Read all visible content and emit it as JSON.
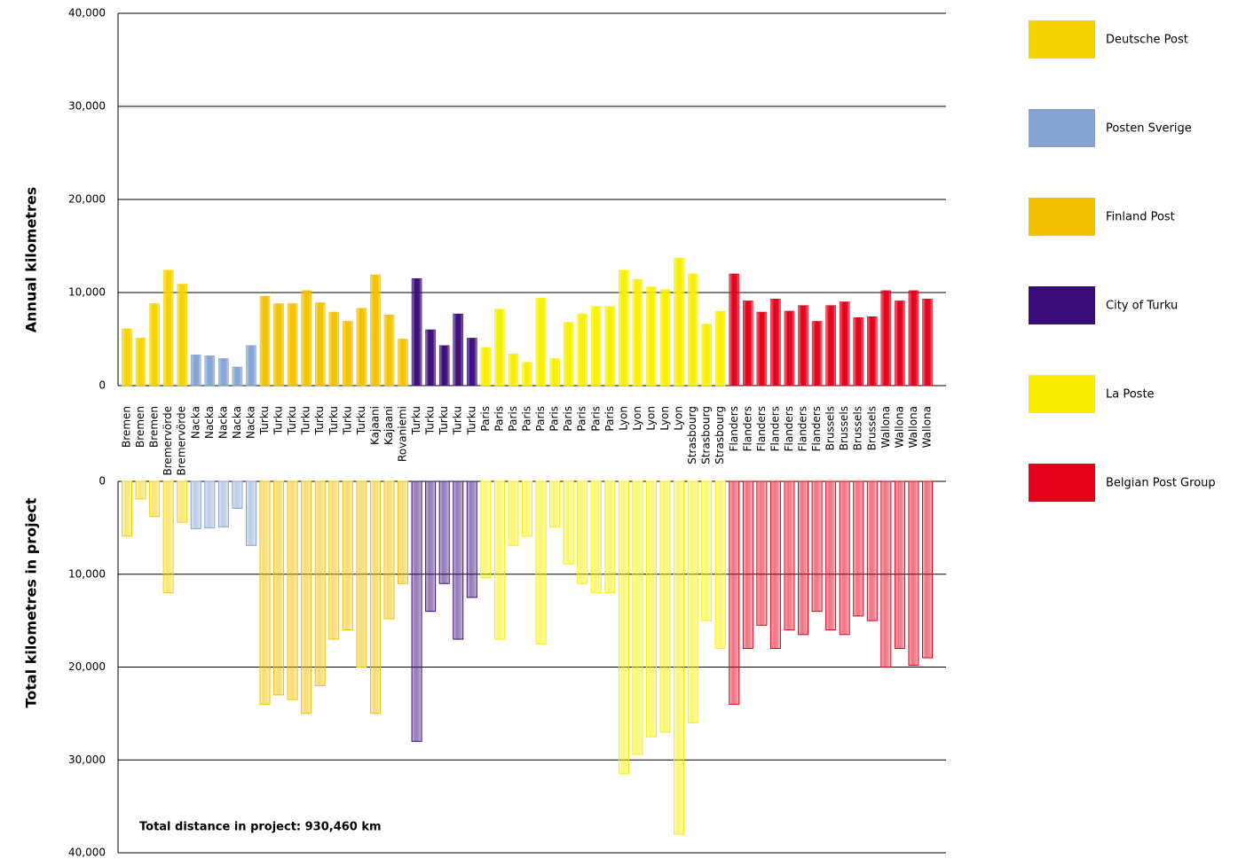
{
  "chart_data": {
    "type": "bar",
    "y_label": "Annual kilometres",
    "y2_label": "Total kilometres in project",
    "annotation": "Total distance in project: 930,460 km",
    "ylim": [
      0,
      40000
    ],
    "yticks": [
      0,
      {
        "value": 10000,
        "label": "10,000"
      },
      {
        "value": 20000,
        "label": "20,000"
      },
      {
        "value": 30000,
        "label": "30,000"
      },
      {
        "value": 40000,
        "label": "40,000"
      }
    ],
    "y2lim": [
      0,
      40000
    ],
    "y2ticks": [
      0,
      {
        "value": 10000,
        "label": "10,000"
      },
      {
        "value": 20000,
        "label": "20,000"
      },
      {
        "value": 30000,
        "label": "30,000"
      },
      {
        "value": 40000,
        "label": "40,000"
      }
    ],
    "y2_inverted": true,
    "grid": true,
    "series": [
      {
        "name": "Deutsche Post",
        "color": "#f5d300",
        "categories": [
          "Bremen",
          "Bremen",
          "Bremen",
          "Bremervörde",
          "Bremervörde"
        ],
        "values": [
          6100,
          5100,
          8800,
          12400,
          10900
        ],
        "totals": [
          5900,
          1900,
          3800,
          12000,
          4400
        ]
      },
      {
        "name": "Posten Sverige",
        "color": "#85a3d4",
        "categories": [
          "Nacka",
          "Nacka",
          "Nacka",
          "Nacka",
          "Nacka"
        ],
        "values": [
          3300,
          3200,
          2900,
          2000,
          4300
        ],
        "totals": [
          5100,
          5000,
          4900,
          2900,
          6900
        ]
      },
      {
        "name": "Finland Post",
        "color": "#f2c100",
        "categories": [
          "Turku",
          "Turku",
          "Turku",
          "Turku",
          "Turku",
          "Turku",
          "Turku",
          "Turku",
          "Kajaani",
          "Kajaani",
          "Rovaniemi"
        ],
        "values": [
          9600,
          8800,
          8800,
          10200,
          8900,
          7900,
          6900,
          8300,
          11900,
          7600,
          5000
        ],
        "totals": [
          24000,
          23000,
          23500,
          25000,
          22000,
          17000,
          16000,
          20000,
          25000,
          14800,
          11000
        ]
      },
      {
        "name": "City of Turku",
        "color": "#3a0c7a",
        "categories": [
          "Turku",
          "Turku",
          "Turku",
          "Turku",
          "Turku"
        ],
        "values": [
          11500,
          6000,
          4300,
          7700,
          5100
        ],
        "totals": [
          28000,
          14000,
          11000,
          17000,
          12500
        ]
      },
      {
        "name": "La Poste",
        "color": "#f8f000",
        "categories": [
          "Paris",
          "Paris",
          "Paris",
          "Paris",
          "Paris",
          "Paris",
          "Paris",
          "Paris",
          "Paris",
          "Paris",
          "Lyon",
          "Lyon",
          "Lyon",
          "Lyon",
          "Lyon",
          "Strasbourg",
          "Strasbourg",
          "Strasbourg"
        ],
        "values": [
          4100,
          8200,
          3400,
          2500,
          9400,
          2900,
          6800,
          7700,
          8500,
          8500,
          12400,
          11400,
          10600,
          10300,
          13700,
          12000,
          6600,
          8000
        ],
        "totals": [
          10400,
          17000,
          6900,
          5900,
          17500,
          4900,
          8900,
          11000,
          12000,
          12000,
          31500,
          29400,
          27500,
          27000,
          38000,
          26000,
          15000,
          18000
        ]
      },
      {
        "name": "Belgian Post Group",
        "color": "#e2001a",
        "categories": [
          "Flanders",
          "Flanders",
          "Flanders",
          "Flanders",
          "Flanders",
          "Flanders",
          "Flanders",
          "Brussels",
          "Brussels",
          "Brussels",
          "Brussels",
          "Wallona",
          "Wallona",
          "Wallona",
          "Wallona"
        ],
        "values": [
          12000,
          9100,
          7900,
          9300,
          8000,
          8600,
          6900,
          8600,
          9000,
          7300,
          7400,
          10200,
          9100,
          10200,
          9300
        ],
        "totals": [
          24000,
          18000,
          15500,
          18000,
          16000,
          16500,
          14000,
          16000,
          16500,
          14500,
          15000,
          20000,
          18000,
          19800,
          19000
        ]
      }
    ]
  }
}
